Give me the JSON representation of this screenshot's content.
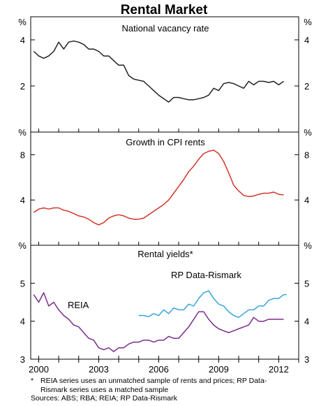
{
  "title": "Rental Market",
  "colors": {
    "vacancy": "#222222",
    "cpi_rents": "#d3352a",
    "reia": "#7a2d8c",
    "rp_data": "#36a6dc",
    "axis": "#000000"
  },
  "x_ticks": [
    "2000",
    "2003",
    "2006",
    "2009",
    "2012"
  ],
  "chart_data": [
    {
      "type": "line",
      "title": "National vacancy rate",
      "ylabel": "%",
      "ylim": [
        0,
        5
      ],
      "yticks": [
        2,
        4
      ],
      "xlim": [
        1999.6,
        2013.0
      ],
      "series": [
        {
          "name": "",
          "color": "#222222",
          "x": [
            1999.75,
            2000.0,
            2000.25,
            2000.5,
            2000.75,
            2001.0,
            2001.25,
            2001.5,
            2001.75,
            2002.0,
            2002.25,
            2002.5,
            2002.75,
            2003.0,
            2003.25,
            2003.5,
            2003.75,
            2004.0,
            2004.25,
            2004.5,
            2004.75,
            2005.0,
            2005.25,
            2005.5,
            2005.75,
            2006.0,
            2006.25,
            2006.5,
            2006.75,
            2007.0,
            2007.25,
            2007.5,
            2007.75,
            2008.0,
            2008.25,
            2008.5,
            2008.75,
            2009.0,
            2009.25,
            2009.5,
            2009.75,
            2010.0,
            2010.25,
            2010.5,
            2010.75,
            2011.0,
            2011.25,
            2011.5,
            2011.75,
            2012.0,
            2012.25
          ],
          "y": [
            3.5,
            3.3,
            3.2,
            3.3,
            3.5,
            3.9,
            3.6,
            3.9,
            3.95,
            3.9,
            3.8,
            3.6,
            3.6,
            3.5,
            3.3,
            3.3,
            3.1,
            2.9,
            2.9,
            2.45,
            2.3,
            2.25,
            2.2,
            2.0,
            1.8,
            1.6,
            1.45,
            1.3,
            1.5,
            1.5,
            1.45,
            1.4,
            1.4,
            1.45,
            1.5,
            1.6,
            1.9,
            1.8,
            2.1,
            2.15,
            2.1,
            2.0,
            1.9,
            2.2,
            2.05,
            2.2,
            2.2,
            2.15,
            2.2,
            2.05,
            2.2
          ]
        }
      ]
    },
    {
      "type": "line",
      "title": "Growth in CPI rents",
      "ylabel": "%",
      "ylim": [
        0,
        10
      ],
      "yticks": [
        4,
        8
      ],
      "xlim": [
        1999.6,
        2013.0
      ],
      "series": [
        {
          "name": "",
          "color": "#d3352a",
          "x": [
            1999.75,
            2000.0,
            2000.25,
            2000.5,
            2000.75,
            2001.0,
            2001.25,
            2001.5,
            2001.75,
            2002.0,
            2002.25,
            2002.5,
            2002.75,
            2003.0,
            2003.25,
            2003.5,
            2003.75,
            2004.0,
            2004.25,
            2004.5,
            2004.75,
            2005.0,
            2005.25,
            2005.5,
            2005.75,
            2006.0,
            2006.25,
            2006.5,
            2006.75,
            2007.0,
            2007.25,
            2007.5,
            2007.75,
            2008.0,
            2008.25,
            2008.5,
            2008.75,
            2009.0,
            2009.25,
            2009.5,
            2009.75,
            2010.0,
            2010.25,
            2010.5,
            2010.75,
            2011.0,
            2011.25,
            2011.5,
            2011.75,
            2012.0,
            2012.25
          ],
          "y": [
            2.9,
            3.2,
            3.3,
            3.2,
            3.3,
            3.3,
            3.1,
            3.0,
            2.8,
            2.6,
            2.5,
            2.3,
            2.0,
            1.8,
            2.0,
            2.4,
            2.6,
            2.7,
            2.6,
            2.4,
            2.3,
            2.3,
            2.4,
            2.7,
            3.0,
            3.3,
            3.6,
            4.0,
            4.6,
            5.2,
            5.8,
            6.5,
            7.0,
            7.6,
            8.1,
            8.3,
            8.4,
            8.1,
            7.4,
            6.4,
            5.3,
            4.8,
            4.4,
            4.3,
            4.35,
            4.5,
            4.6,
            4.6,
            4.7,
            4.5,
            4.45
          ]
        }
      ]
    },
    {
      "type": "line",
      "title": "Rental yields*",
      "ylabel": "%",
      "ylim": [
        3,
        6
      ],
      "yticks": [
        3,
        4,
        5
      ],
      "xlim": [
        1999.6,
        2013.0
      ],
      "series": [
        {
          "name": "REIA",
          "color": "#7a2d8c",
          "x": [
            1999.75,
            2000.0,
            2000.25,
            2000.5,
            2000.75,
            2001.0,
            2001.25,
            2001.5,
            2001.75,
            2002.0,
            2002.25,
            2002.5,
            2002.75,
            2003.0,
            2003.25,
            2003.5,
            2003.75,
            2004.0,
            2004.25,
            2004.5,
            2004.75,
            2005.0,
            2005.25,
            2005.5,
            2005.75,
            2006.0,
            2006.25,
            2006.5,
            2006.75,
            2007.0,
            2007.25,
            2007.5,
            2007.75,
            2008.0,
            2008.25,
            2008.5,
            2008.75,
            2009.0,
            2009.25,
            2009.5,
            2009.75,
            2010.0,
            2010.25,
            2010.5,
            2010.75,
            2011.0,
            2011.25,
            2011.5,
            2011.75,
            2012.0,
            2012.25
          ],
          "y": [
            4.7,
            4.5,
            4.75,
            4.4,
            4.5,
            4.3,
            4.15,
            4.05,
            3.9,
            3.85,
            3.7,
            3.55,
            3.5,
            3.3,
            3.25,
            3.3,
            3.2,
            3.3,
            3.3,
            3.4,
            3.45,
            3.45,
            3.5,
            3.5,
            3.45,
            3.5,
            3.5,
            3.6,
            3.55,
            3.55,
            3.7,
            3.85,
            4.05,
            4.25,
            4.25,
            4.05,
            3.9,
            3.8,
            3.75,
            3.7,
            3.75,
            3.8,
            3.85,
            3.9,
            4.1,
            4.0,
            4.0,
            4.05,
            4.05,
            4.05,
            4.05
          ]
        },
        {
          "name": "RP Data-Rismark",
          "color": "#36a6dc",
          "x": [
            2005.0,
            2005.25,
            2005.5,
            2005.75,
            2006.0,
            2006.25,
            2006.5,
            2006.75,
            2007.0,
            2007.25,
            2007.5,
            2007.75,
            2008.0,
            2008.25,
            2008.5,
            2008.75,
            2009.0,
            2009.25,
            2009.5,
            2009.75,
            2010.0,
            2010.25,
            2010.5,
            2010.75,
            2011.0,
            2011.25,
            2011.5,
            2011.75,
            2012.0,
            2012.25,
            2012.4
          ],
          "y": [
            4.15,
            4.15,
            4.12,
            4.2,
            4.15,
            4.3,
            4.2,
            4.35,
            4.3,
            4.3,
            4.45,
            4.4,
            4.6,
            4.75,
            4.8,
            4.6,
            4.45,
            4.4,
            4.25,
            4.15,
            4.1,
            4.2,
            4.3,
            4.3,
            4.4,
            4.4,
            4.55,
            4.6,
            4.6,
            4.7,
            4.7
          ]
        }
      ]
    }
  ],
  "notes": {
    "star": "*",
    "note_line1": "REIA series uses an unmatched sample of rents and prices; RP Data-",
    "note_line2": "Rismark series uses a matched sample",
    "sources": "Sources: ABS; RBA; REIA; RP Data-Rismark"
  }
}
